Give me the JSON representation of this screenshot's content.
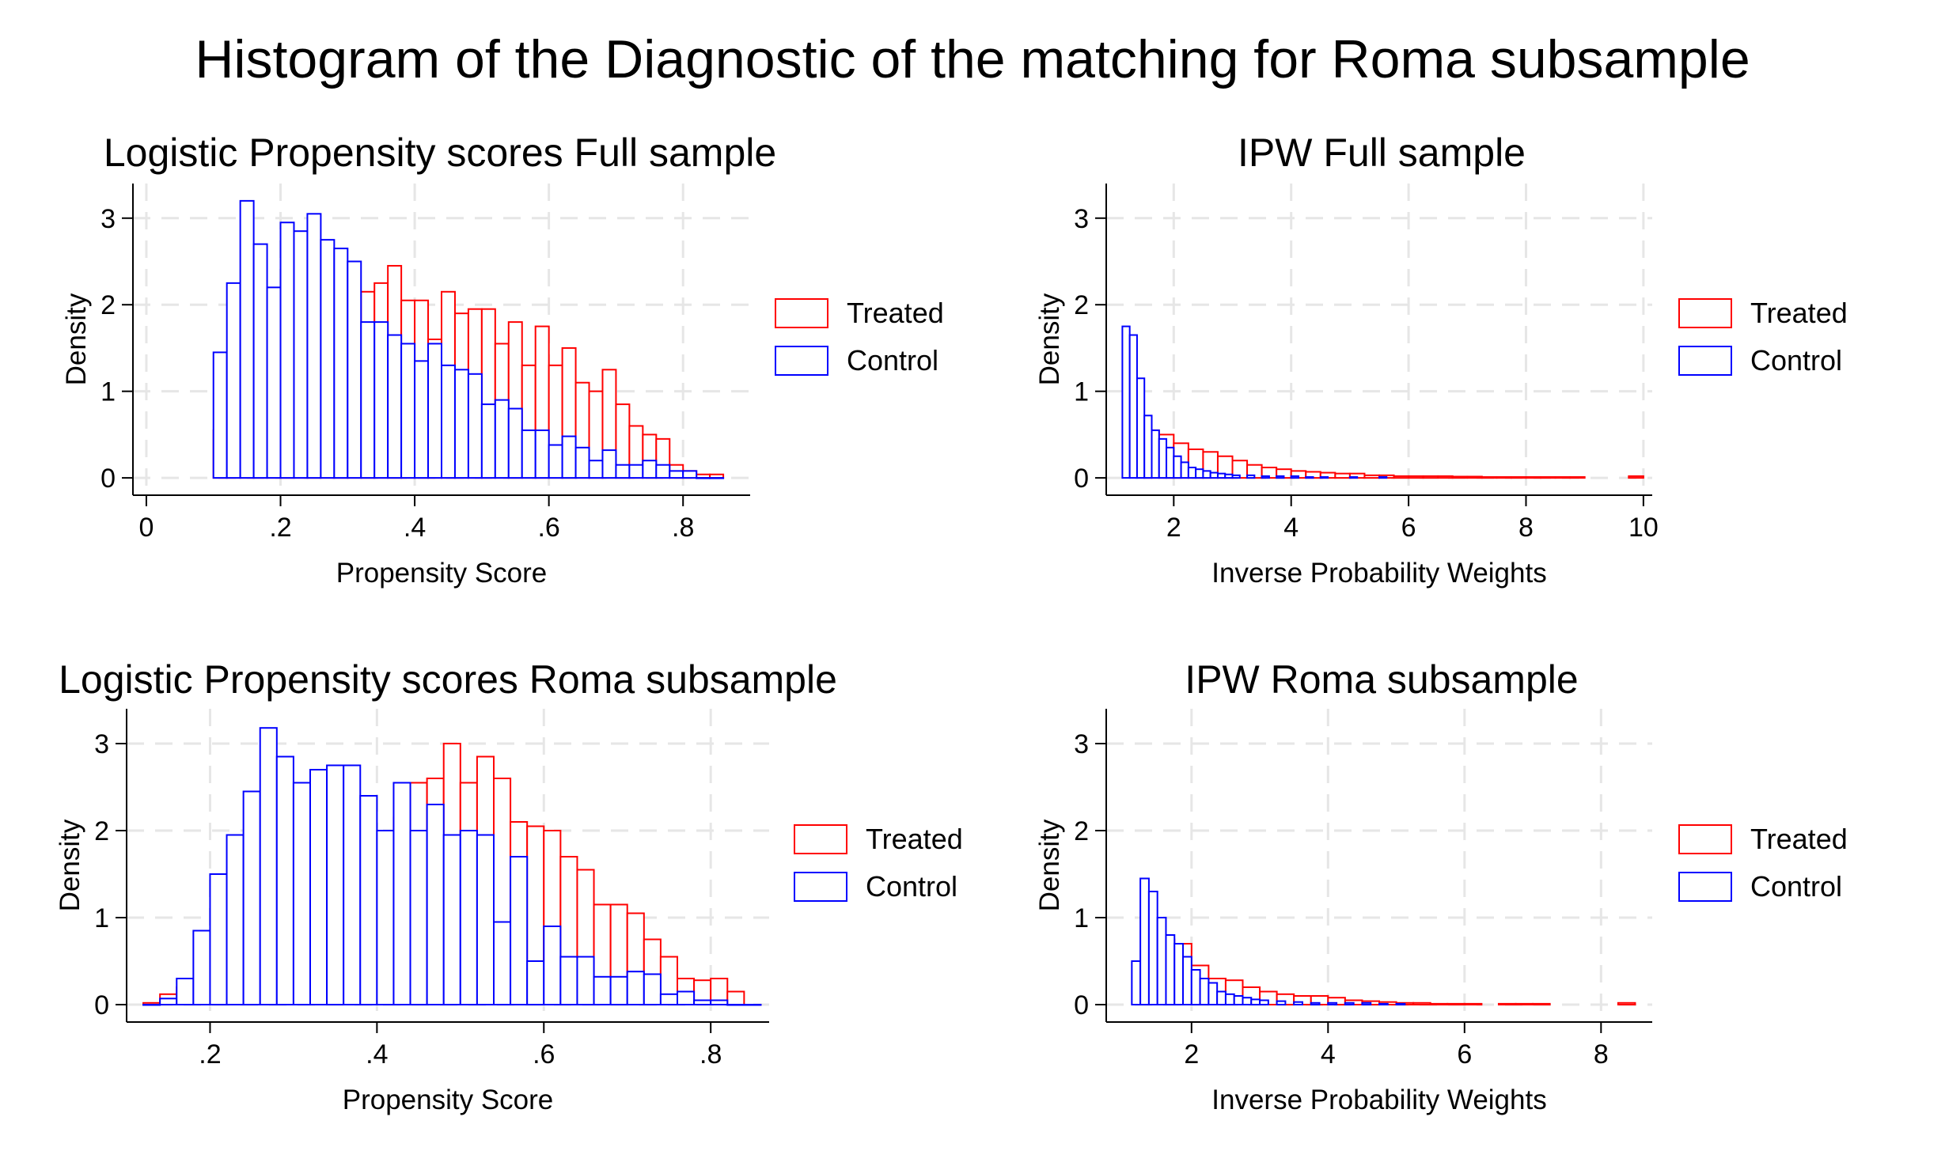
{
  "figure": {
    "title": "Histogram of the Diagnostic of the matching for Roma subsample"
  },
  "chart_data": [
    {
      "type": "bar",
      "title": "Logistic Propensity scores Full sample",
      "xlabel": "Propensity Score",
      "ylabel": "Density",
      "xlim": [
        -0.02,
        0.9
      ],
      "ylim": [
        -0.2,
        3.4
      ],
      "xticks": [
        0,
        0.2,
        0.4,
        0.6,
        0.8
      ],
      "xtick_labels": [
        "0",
        ".2",
        ".4",
        ".6",
        ".8"
      ],
      "yticks": [
        0,
        1,
        2,
        3
      ],
      "ytick_labels": [
        "0",
        "1",
        "2",
        "3"
      ],
      "grid": true,
      "legend_position": "right",
      "bin_width": 0.02,
      "series": [
        {
          "name": "Treated",
          "color": "#ff0000",
          "bin_starts": [
            0.1,
            0.12,
            0.14,
            0.16,
            0.18,
            0.2,
            0.22,
            0.24,
            0.26,
            0.28,
            0.3,
            0.32,
            0.34,
            0.36,
            0.38,
            0.4,
            0.42,
            0.44,
            0.46,
            0.48,
            0.5,
            0.52,
            0.54,
            0.56,
            0.58,
            0.6,
            0.62,
            0.64,
            0.66,
            0.68,
            0.7,
            0.72,
            0.74,
            0.76,
            0.78,
            0.8,
            0.82,
            0.84
          ],
          "values": [
            0.55,
            0.62,
            0.72,
            0.85,
            0.95,
            1.1,
            1.3,
            1.45,
            1.6,
            1.8,
            1.95,
            2.15,
            2.25,
            2.45,
            2.05,
            2.05,
            1.6,
            2.15,
            1.9,
            1.95,
            1.95,
            1.55,
            1.8,
            1.3,
            1.75,
            1.3,
            1.5,
            1.1,
            1.0,
            1.25,
            0.85,
            0.6,
            0.5,
            0.45,
            0.15,
            0.08,
            0.04,
            0.04
          ]
        },
        {
          "name": "Control",
          "color": "#0000ff",
          "bin_starts": [
            0.1,
            0.12,
            0.14,
            0.16,
            0.18,
            0.2,
            0.22,
            0.24,
            0.26,
            0.28,
            0.3,
            0.32,
            0.34,
            0.36,
            0.38,
            0.4,
            0.42,
            0.44,
            0.46,
            0.48,
            0.5,
            0.52,
            0.54,
            0.56,
            0.58,
            0.6,
            0.62,
            0.64,
            0.66,
            0.68,
            0.7,
            0.72,
            0.74,
            0.76,
            0.78,
            0.8,
            0.82,
            0.84
          ],
          "values": [
            1.45,
            2.25,
            3.2,
            2.7,
            2.2,
            2.95,
            2.85,
            3.05,
            2.75,
            2.65,
            2.5,
            1.8,
            1.8,
            1.65,
            1.55,
            1.35,
            1.55,
            1.3,
            1.25,
            1.2,
            0.85,
            0.9,
            0.8,
            0.55,
            0.55,
            0.38,
            0.48,
            0.35,
            0.2,
            0.32,
            0.15,
            0.15,
            0.2,
            0.15,
            0.08,
            0.08,
            0.0,
            0.0
          ]
        }
      ]
    },
    {
      "type": "bar",
      "title": "IPW Full sample",
      "xlabel": "Inverse Probability Weights",
      "ylabel": "Density",
      "xlim": [
        0.85,
        10.15
      ],
      "ylim": [
        -0.2,
        3.4
      ],
      "xticks": [
        2,
        4,
        6,
        8,
        10
      ],
      "xtick_labels": [
        "2",
        "4",
        "6",
        "8",
        "10"
      ],
      "yticks": [
        0,
        1,
        2,
        3
      ],
      "ytick_labels": [
        "0",
        "1",
        "2",
        "3"
      ],
      "grid": true,
      "legend_position": "right",
      "series": [
        {
          "name": "Treated",
          "color": "#ff0000",
          "bin_width": 0.25,
          "bin_starts": [
            1.5,
            1.75,
            2.0,
            2.25,
            2.5,
            2.75,
            3.0,
            3.25,
            3.5,
            3.75,
            4.0,
            4.25,
            4.5,
            4.75,
            5.0,
            5.25,
            5.5,
            5.75,
            6.0,
            6.25,
            6.5,
            6.75,
            7.0,
            7.25,
            7.5,
            7.75,
            8.0,
            8.25,
            8.5,
            8.75,
            9.75
          ],
          "values": [
            0.55,
            0.5,
            0.4,
            0.33,
            0.3,
            0.25,
            0.2,
            0.15,
            0.12,
            0.1,
            0.08,
            0.07,
            0.06,
            0.05,
            0.05,
            0.03,
            0.03,
            0.02,
            0.02,
            0.02,
            0.02,
            0.015,
            0.015,
            0.01,
            0.01,
            0.01,
            0.01,
            0.01,
            0.01,
            0.01,
            0.02
          ]
        },
        {
          "name": "Control",
          "color": "#0000ff",
          "bin_width": 0.125,
          "bin_starts": [
            1.125,
            1.25,
            1.375,
            1.5,
            1.625,
            1.75,
            1.875,
            2.0,
            2.125,
            2.25,
            2.375,
            2.5,
            2.625,
            2.75,
            2.875,
            3.0,
            3.25,
            3.5,
            3.75,
            4.0,
            4.25,
            4.5,
            5.0,
            5.5
          ],
          "values": [
            1.75,
            1.65,
            1.15,
            0.72,
            0.55,
            0.45,
            0.35,
            0.25,
            0.18,
            0.12,
            0.1,
            0.08,
            0.06,
            0.05,
            0.04,
            0.03,
            0.03,
            0.02,
            0.02,
            0.02,
            0.01,
            0.01,
            0.01,
            0.01
          ]
        }
      ]
    },
    {
      "type": "bar",
      "title": "Logistic Propensity scores Roma subsample",
      "xlabel": "Propensity Score",
      "ylabel": "Density",
      "xlim": [
        0.1,
        0.87
      ],
      "ylim": [
        -0.2,
        3.4
      ],
      "xticks": [
        0.2,
        0.4,
        0.6,
        0.8
      ],
      "xtick_labels": [
        ".2",
        ".4",
        ".6",
        ".8"
      ],
      "yticks": [
        0,
        1,
        2,
        3
      ],
      "ytick_labels": [
        "0",
        "1",
        "2",
        "3"
      ],
      "grid": true,
      "legend_position": "right",
      "bin_width": 0.02,
      "series": [
        {
          "name": "Treated",
          "color": "#ff0000",
          "bin_starts": [
            0.12,
            0.14,
            0.16,
            0.18,
            0.2,
            0.22,
            0.24,
            0.26,
            0.28,
            0.3,
            0.32,
            0.34,
            0.36,
            0.38,
            0.4,
            0.42,
            0.44,
            0.46,
            0.48,
            0.5,
            0.52,
            0.54,
            0.56,
            0.58,
            0.6,
            0.62,
            0.64,
            0.66,
            0.68,
            0.7,
            0.72,
            0.74,
            0.76,
            0.78,
            0.8,
            0.82,
            0.84
          ],
          "values": [
            0.02,
            0.12,
            0.2,
            0.3,
            0.45,
            0.6,
            0.8,
            0.95,
            1.1,
            1.25,
            1.4,
            1.6,
            1.8,
            1.9,
            2.0,
            2.15,
            2.55,
            2.6,
            3.0,
            2.55,
            2.85,
            2.6,
            2.1,
            2.05,
            2.0,
            1.7,
            1.55,
            1.15,
            1.15,
            1.05,
            0.75,
            0.55,
            0.3,
            0.28,
            0.3,
            0.15,
            0.0
          ]
        },
        {
          "name": "Control",
          "color": "#0000ff",
          "bin_starts": [
            0.12,
            0.14,
            0.16,
            0.18,
            0.2,
            0.22,
            0.24,
            0.26,
            0.28,
            0.3,
            0.32,
            0.34,
            0.36,
            0.38,
            0.4,
            0.42,
            0.44,
            0.46,
            0.48,
            0.5,
            0.52,
            0.54,
            0.56,
            0.58,
            0.6,
            0.62,
            0.64,
            0.66,
            0.68,
            0.7,
            0.72,
            0.74,
            0.76,
            0.78,
            0.8,
            0.82,
            0.84
          ],
          "values": [
            0.0,
            0.07,
            0.3,
            0.85,
            1.5,
            1.95,
            2.45,
            3.18,
            2.85,
            2.55,
            2.7,
            2.75,
            2.75,
            2.4,
            2.0,
            2.55,
            2.0,
            2.3,
            1.95,
            2.0,
            1.95,
            0.95,
            1.7,
            0.5,
            0.9,
            0.55,
            0.55,
            0.32,
            0.32,
            0.38,
            0.35,
            0.12,
            0.15,
            0.05,
            0.05,
            0.0,
            0.0
          ]
        }
      ]
    },
    {
      "type": "bar",
      "title": "IPW Roma subsample",
      "xlabel": "Inverse Probability Weights",
      "ylabel": "Density",
      "xlim": [
        0.75,
        8.75
      ],
      "ylim": [
        -0.2,
        3.4
      ],
      "xticks": [
        2,
        4,
        6,
        8
      ],
      "xtick_labels": [
        "2",
        "4",
        "6",
        "8"
      ],
      "yticks": [
        0,
        1,
        2,
        3
      ],
      "ytick_labels": [
        "0",
        "1",
        "2",
        "3"
      ],
      "grid": true,
      "legend_position": "right",
      "series": [
        {
          "name": "Treated",
          "color": "#ff0000",
          "bin_width": 0.25,
          "bin_starts": [
            1.5,
            1.75,
            2.0,
            2.25,
            2.5,
            2.75,
            3.0,
            3.25,
            3.5,
            3.75,
            4.0,
            4.25,
            4.5,
            4.75,
            5.0,
            5.25,
            5.5,
            5.75,
            6.0,
            6.5,
            6.75,
            7.0,
            8.25
          ],
          "values": [
            0.75,
            0.7,
            0.45,
            0.3,
            0.28,
            0.2,
            0.15,
            0.12,
            0.1,
            0.1,
            0.08,
            0.05,
            0.04,
            0.03,
            0.02,
            0.02,
            0.01,
            0.01,
            0.01,
            0.01,
            0.01,
            0.01,
            0.02
          ]
        },
        {
          "name": "Control",
          "color": "#0000ff",
          "bin_width": 0.125,
          "bin_starts": [
            1.125,
            1.25,
            1.375,
            1.5,
            1.625,
            1.75,
            1.875,
            2.0,
            2.125,
            2.25,
            2.375,
            2.5,
            2.625,
            2.75,
            2.875,
            3.0,
            3.25,
            3.5,
            3.75,
            4.0,
            4.25,
            4.5,
            4.75,
            5.0
          ],
          "values": [
            0.5,
            1.45,
            1.3,
            1.0,
            0.8,
            0.7,
            0.55,
            0.4,
            0.3,
            0.25,
            0.15,
            0.12,
            0.1,
            0.08,
            0.06,
            0.05,
            0.04,
            0.03,
            0.02,
            0.02,
            0.02,
            0.02,
            0.01,
            0.01
          ]
        }
      ]
    }
  ]
}
